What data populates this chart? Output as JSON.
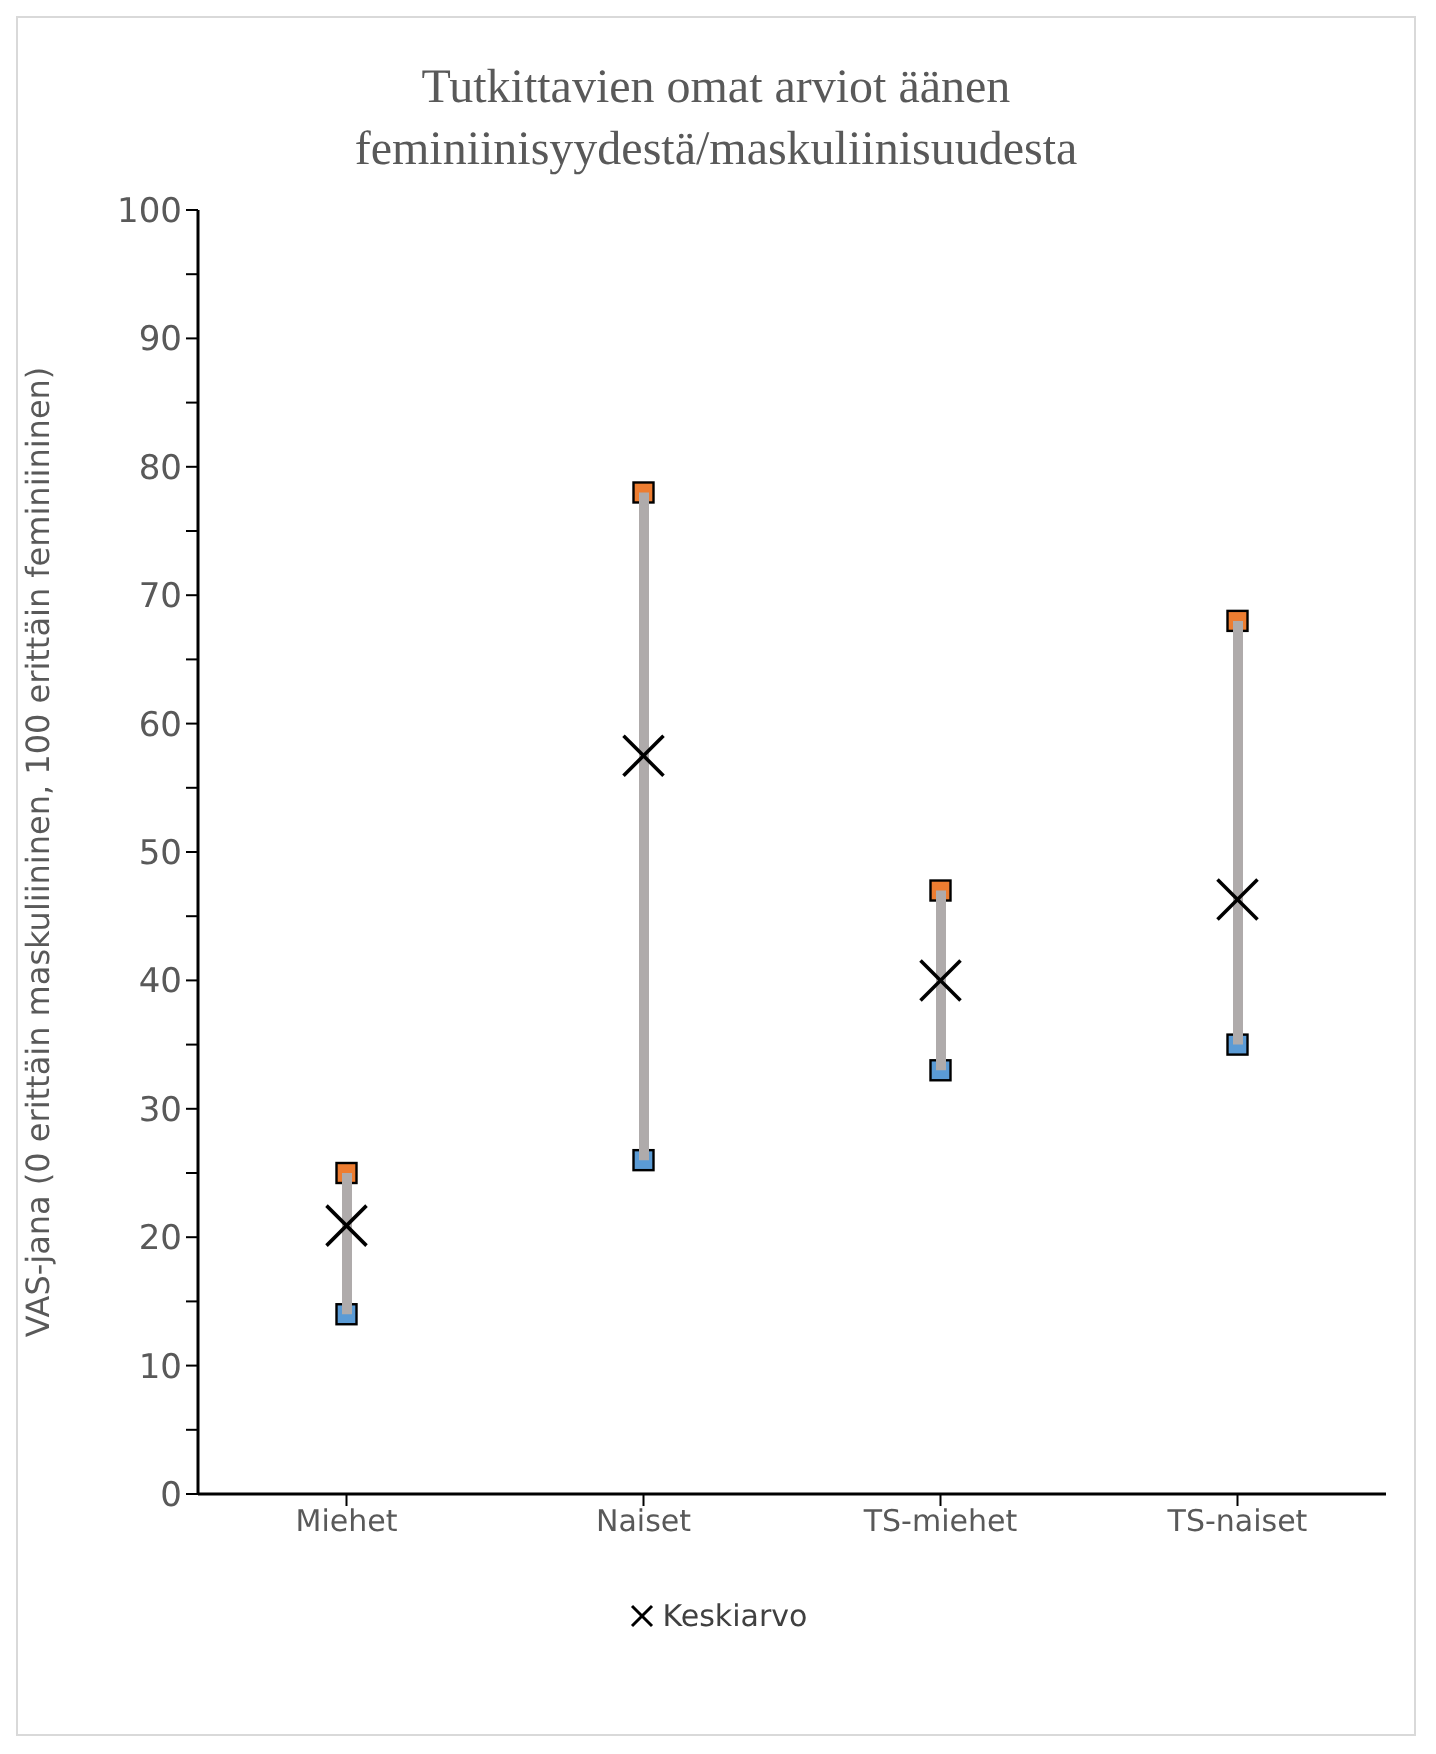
{
  "chart_data": {
    "type": "bar",
    "title": "Tutkittavien omat arviot äänen feminiinisyydestä/maskuliinisuudesta",
    "ylabel": "VAS-jana (0 erittäin maskuliininen, 100 erittäin feminiininen)",
    "categories": [
      "Miehet",
      "Naiset",
      "TS-miehet",
      "TS-naiset"
    ],
    "series": [
      {
        "type": "scatter",
        "color": "#5b9bd5",
        "marker": "square",
        "values": [
          14,
          26,
          33,
          35
        ]
      },
      {
        "type": "scatter",
        "color": "#ed7d31",
        "marker": "square",
        "values": [
          25,
          78,
          47,
          68
        ]
      },
      {
        "color": "#afabab",
        "base": [
          14,
          26,
          33,
          35
        ],
        "values": [
          11,
          52,
          14,
          33
        ]
      },
      {
        "type": "scatter",
        "name": "Keskiarvo",
        "color": "#000000",
        "marker": "cross",
        "values": [
          20.9,
          57.5,
          40,
          46.3
        ]
      }
    ],
    "ylim": [
      0,
      100
    ],
    "yticks": [
      0,
      {
        "value": 5,
        "label": null
      },
      10,
      {
        "value": 15,
        "label": null
      },
      20,
      {
        "value": 25,
        "label": null
      },
      30,
      {
        "value": 35,
        "label": null
      },
      40,
      {
        "value": 45,
        "label": null
      },
      50,
      {
        "value": 55,
        "label": null
      },
      60,
      {
        "value": 65,
        "label": null
      },
      70,
      {
        "value": 75,
        "label": null
      },
      80,
      {
        "value": 85,
        "label": null
      },
      90,
      {
        "value": 95,
        "label": null
      },
      100
    ],
    "grid": false,
    "legend": "bottom"
  }
}
